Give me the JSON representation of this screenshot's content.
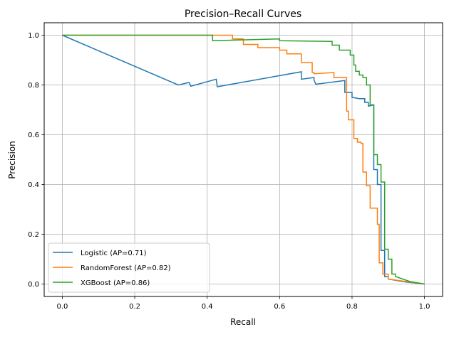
{
  "chart_data": {
    "type": "line",
    "title": "Precision–Recall Curves",
    "xlabel": "Recall",
    "ylabel": "Precision",
    "xlim": [
      -0.05,
      1.05
    ],
    "ylim": [
      -0.05,
      1.05
    ],
    "xticks": [
      "0.0",
      "0.2",
      "0.4",
      "0.6",
      "0.8",
      "1.0"
    ],
    "yticks": [
      "0.0",
      "0.2",
      "0.4",
      "0.6",
      "0.8",
      "1.0"
    ],
    "grid": true,
    "legend_position": "lower-left",
    "series": [
      {
        "name": "Logistic (AP=0.71)",
        "color": "#1f77b4",
        "points": [
          [
            0,
            1
          ],
          [
            0.32,
            0.8
          ],
          [
            0.35,
            0.81
          ],
          [
            0.355,
            0.795
          ],
          [
            0.425,
            0.823
          ],
          [
            0.428,
            0.793
          ],
          [
            0.66,
            0.853
          ],
          [
            0.66,
            0.823
          ],
          [
            0.695,
            0.83
          ],
          [
            0.695,
            0.82
          ],
          [
            0.7,
            0.803
          ],
          [
            0.78,
            0.818
          ],
          [
            0.78,
            0.77
          ],
          [
            0.8,
            0.77
          ],
          [
            0.8,
            0.75
          ],
          [
            0.82,
            0.745
          ],
          [
            0.835,
            0.745
          ],
          [
            0.835,
            0.73
          ],
          [
            0.845,
            0.73
          ],
          [
            0.845,
            0.715
          ],
          [
            0.86,
            0.72
          ],
          [
            0.86,
            0.46
          ],
          [
            0.87,
            0.46
          ],
          [
            0.87,
            0.4
          ],
          [
            0.88,
            0.4
          ],
          [
            0.88,
            0.135
          ],
          [
            0.89,
            0.135
          ],
          [
            0.89,
            0.03
          ],
          [
            0.9,
            0.03
          ],
          [
            0.9,
            0.02
          ],
          [
            0.92,
            0.015
          ],
          [
            0.95,
            0.008
          ],
          [
            1.0,
            0.0
          ]
        ]
      },
      {
        "name": "RandomForest (AP=0.82)",
        "color": "#ff7f0e",
        "points": [
          [
            0,
            1
          ],
          [
            0.47,
            1.0
          ],
          [
            0.47,
            0.985
          ],
          [
            0.5,
            0.985
          ],
          [
            0.5,
            0.963
          ],
          [
            0.54,
            0.963
          ],
          [
            0.54,
            0.95
          ],
          [
            0.6,
            0.95
          ],
          [
            0.6,
            0.94
          ],
          [
            0.62,
            0.94
          ],
          [
            0.62,
            0.925
          ],
          [
            0.66,
            0.925
          ],
          [
            0.66,
            0.89
          ],
          [
            0.69,
            0.89
          ],
          [
            0.69,
            0.85
          ],
          [
            0.695,
            0.85
          ],
          [
            0.695,
            0.845
          ],
          [
            0.75,
            0.85
          ],
          [
            0.75,
            0.83
          ],
          [
            0.785,
            0.83
          ],
          [
            0.785,
            0.695
          ],
          [
            0.79,
            0.695
          ],
          [
            0.79,
            0.66
          ],
          [
            0.805,
            0.66
          ],
          [
            0.805,
            0.585
          ],
          [
            0.815,
            0.585
          ],
          [
            0.815,
            0.57
          ],
          [
            0.825,
            0.57
          ],
          [
            0.825,
            0.565
          ],
          [
            0.83,
            0.565
          ],
          [
            0.83,
            0.45
          ],
          [
            0.84,
            0.45
          ],
          [
            0.84,
            0.395
          ],
          [
            0.85,
            0.395
          ],
          [
            0.85,
            0.305
          ],
          [
            0.87,
            0.305
          ],
          [
            0.87,
            0.24
          ],
          [
            0.875,
            0.24
          ],
          [
            0.875,
            0.085
          ],
          [
            0.885,
            0.085
          ],
          [
            0.885,
            0.04
          ],
          [
            0.9,
            0.04
          ],
          [
            0.9,
            0.02
          ],
          [
            0.95,
            0.01
          ],
          [
            1,
            0
          ]
        ]
      },
      {
        "name": "XGBoost (AP=0.86)",
        "color": "#2ca02c",
        "points": [
          [
            0,
            1
          ],
          [
            0.415,
            1.0
          ],
          [
            0.415,
            0.978
          ],
          [
            0.6,
            0.985
          ],
          [
            0.6,
            0.978
          ],
          [
            0.745,
            0.975
          ],
          [
            0.745,
            0.96
          ],
          [
            0.765,
            0.96
          ],
          [
            0.765,
            0.94
          ],
          [
            0.795,
            0.94
          ],
          [
            0.795,
            0.92
          ],
          [
            0.805,
            0.92
          ],
          [
            0.805,
            0.88
          ],
          [
            0.81,
            0.88
          ],
          [
            0.81,
            0.855
          ],
          [
            0.82,
            0.855
          ],
          [
            0.82,
            0.84
          ],
          [
            0.83,
            0.84
          ],
          [
            0.83,
            0.83
          ],
          [
            0.84,
            0.83
          ],
          [
            0.84,
            0.8
          ],
          [
            0.85,
            0.8
          ],
          [
            0.85,
            0.72
          ],
          [
            0.86,
            0.72
          ],
          [
            0.86,
            0.52
          ],
          [
            0.87,
            0.52
          ],
          [
            0.87,
            0.48
          ],
          [
            0.88,
            0.48
          ],
          [
            0.88,
            0.41
          ],
          [
            0.89,
            0.41
          ],
          [
            0.89,
            0.14
          ],
          [
            0.9,
            0.14
          ],
          [
            0.9,
            0.1
          ],
          [
            0.91,
            0.1
          ],
          [
            0.91,
            0.04
          ],
          [
            0.92,
            0.04
          ],
          [
            0.92,
            0.03
          ],
          [
            0.94,
            0.02
          ],
          [
            0.96,
            0.01
          ],
          [
            1,
            0
          ]
        ]
      }
    ]
  }
}
